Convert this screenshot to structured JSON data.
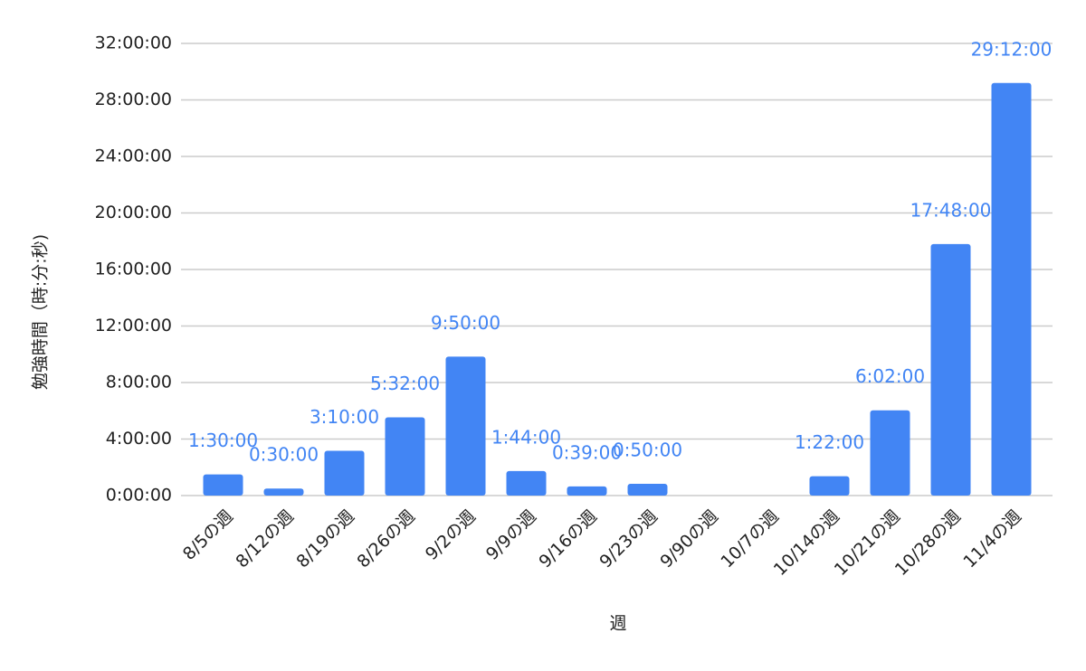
{
  "chart_data": {
    "type": "bar",
    "x_label": "週",
    "y_label": "勉強時間（時:分:秒)",
    "categories": [
      "8/5の週",
      "8/12の週",
      "8/19の週",
      "8/26の週",
      "9/2の週",
      "9/9の週",
      "9/16の週",
      "9/23の週",
      "9/90の週",
      "10/7の週",
      "10/14の週",
      "10/21の週",
      "10/28の週",
      "11/4の週"
    ],
    "values": [
      1.5,
      0.5,
      3.16667,
      5.53333,
      9.83333,
      1.73333,
      0.65,
      0.83333,
      null,
      null,
      1.36667,
      6.03333,
      17.8,
      29.2
    ],
    "value_labels": [
      "1:30:00",
      "0:30:00",
      "3:10:00",
      "5:32:00",
      "9:50:00",
      "1:44:00",
      "0:39:00",
      "0:50:00",
      null,
      null,
      "1:22:00",
      "6:02:00",
      "17:48:00",
      "29:12:00"
    ],
    "color": "#4285f4",
    "ylim": [
      0,
      32
    ],
    "yticks": [
      {
        "value": 0,
        "label": "0:00:00"
      },
      {
        "value": 4,
        "label": "4:00:00"
      },
      {
        "value": 8,
        "label": "8:00:00"
      },
      {
        "value": 12,
        "label": "12:00:00"
      },
      {
        "value": 16,
        "label": "16:00:00"
      },
      {
        "value": 20,
        "label": "20:00:00"
      },
      {
        "value": 24,
        "label": "24:00:00"
      },
      {
        "value": 28,
        "label": "28:00:00"
      },
      {
        "value": 32,
        "label": "32:00:00"
      }
    ],
    "grid": true
  }
}
